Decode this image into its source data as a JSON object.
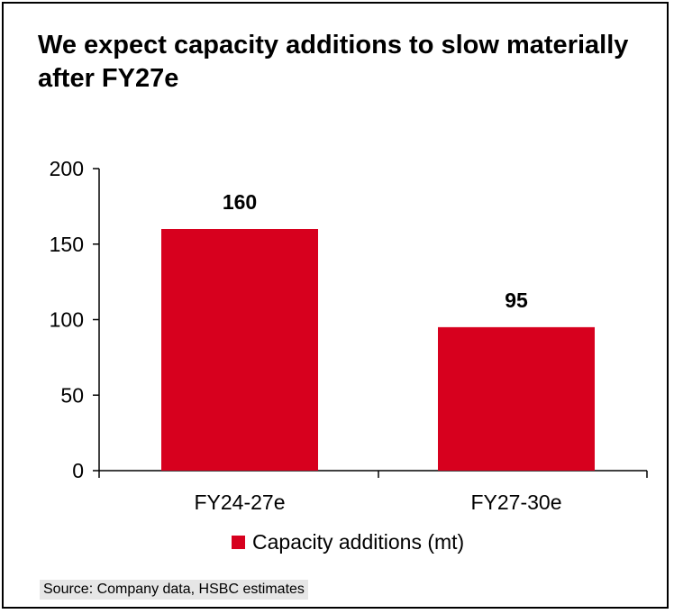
{
  "chart_data": {
    "type": "bar",
    "title": "We expect capacity additions to slow materially after FY27e",
    "categories": [
      "FY24-27e",
      "FY27-30e"
    ],
    "series": [
      {
        "name": "Capacity additions (mt)",
        "values": [
          160,
          95
        ],
        "color": "#d7001e"
      }
    ],
    "data_labels": [
      "160",
      "95"
    ],
    "ylim": [
      0,
      200
    ],
    "yticks": [
      0,
      50,
      100,
      150,
      200
    ],
    "xlabel": "",
    "ylabel": "",
    "grid": false,
    "legend_position": "bottom"
  },
  "source": "Source: Company data, HSBC estimates"
}
